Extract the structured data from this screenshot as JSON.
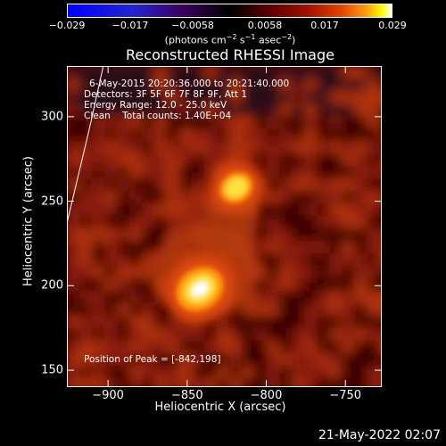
{
  "colorbar": {
    "ticks": [
      "−0.029",
      "−0.017",
      "−0.0058",
      "0.0058",
      "0.017",
      "0.029"
    ],
    "units_main": "(photons cm",
    "units_exp1": "−2",
    "units_mid1": " s",
    "units_exp2": "−1",
    "units_mid2": " asec",
    "units_exp3": "−2",
    "units_end": ")"
  },
  "chart_data": {
    "type": "heatmap",
    "title": "Reconstructed RHESSI Image",
    "xlabel": "Heliocentric X (arcsec)",
    "ylabel": "Heliocentric Y (arcsec)",
    "xlim": [
      -926,
      -727
    ],
    "ylim": [
      140,
      330
    ],
    "x_ticks": [
      "−900",
      "−850",
      "−800",
      "−750"
    ],
    "x_tick_values": [
      -900,
      -850,
      -800,
      -750
    ],
    "y_ticks": [
      "150",
      "200",
      "250",
      "300"
    ],
    "y_tick_values": [
      150,
      200,
      250,
      300
    ],
    "color_range": [
      -0.029,
      0.029
    ],
    "sources": [
      {
        "x": -842,
        "y": 198,
        "relative_intensity": 1.0
      },
      {
        "x": -819,
        "y": 258,
        "relative_intensity": 0.6
      }
    ],
    "peak": [
      -842,
      198
    ],
    "limb_line": [
      [
        -926,
        237
      ],
      [
        -912,
        292
      ],
      [
        -903,
        330
      ]
    ]
  },
  "annotations": {
    "time_range": "6-May-2015 20:20:36.000 to 20:21:40.000",
    "detectors": "Detectors: 3F 5F 6F 7F 8F 9F, Att 1",
    "energy": "Energy Range: 12.0 - 25.0 keV",
    "method": "Clean    Total counts: 1.40E+04",
    "peak": "Position of Peak = [-842,198]"
  },
  "timestamp": "21-May-2022 02:07"
}
